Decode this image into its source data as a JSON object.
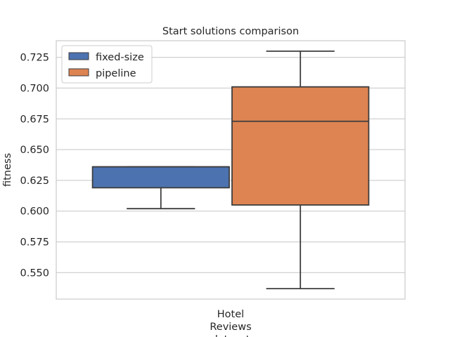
{
  "chart_data": {
    "type": "box",
    "title": "Start solutions comparison",
    "xlabel": "",
    "ylabel": "fitness",
    "categories": [
      "Hotel\nReviews\ndataset"
    ],
    "ylim": [
      0.5285,
      0.7385
    ],
    "yticks": [
      0.55,
      0.575,
      0.6,
      0.625,
      0.65,
      0.675,
      0.7,
      0.725
    ],
    "grid": true,
    "legend": {
      "position": "top-left"
    },
    "series": [
      {
        "name": "fixed-size",
        "color": "#4c72b0",
        "boxes": [
          {
            "category": "Hotel\nReviews\ndataset",
            "whislo": 0.602,
            "q1": 0.619,
            "med": 0.636,
            "q3": 0.636,
            "whishi": 0.636
          }
        ]
      },
      {
        "name": "pipeline",
        "color": "#dd8452",
        "boxes": [
          {
            "category": "Hotel\nReviews\ndataset",
            "whislo": 0.537,
            "q1": 0.605,
            "med": 0.673,
            "q3": 0.701,
            "whishi": 0.73
          }
        ]
      }
    ]
  }
}
